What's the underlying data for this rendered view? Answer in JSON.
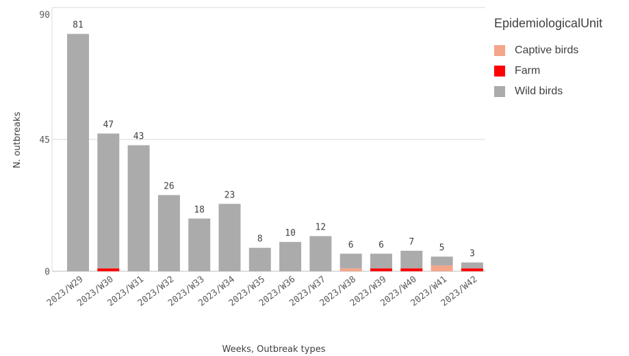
{
  "chart_data": {
    "type": "bar",
    "stacked": true,
    "title": "",
    "xlabel": "Weeks, Outbreak types",
    "ylabel": "N. outbreaks",
    "ylim": [
      0,
      90
    ],
    "yticks": [
      "0",
      "45",
      "90"
    ],
    "grid": true,
    "legend_position": "right",
    "legend_title": "EpidemiologicalUnit",
    "categories": [
      "2023/W29",
      "2023/W30",
      "2023/W31",
      "2023/W32",
      "2023/W33",
      "2023/W34",
      "2023/W35",
      "2023/W36",
      "2023/W37",
      "2023/W38",
      "2023/W39",
      "2023/W40",
      "2023/W41",
      "2023/W42"
    ],
    "totals": [
      "81",
      "47",
      "43",
      "26",
      "18",
      "23",
      "8",
      "10",
      "12",
      "6",
      "6",
      "7",
      "5",
      "3"
    ],
    "series": [
      {
        "name": "Captive birds",
        "color": "#f4a58a",
        "values": [
          0,
          0,
          0,
          0,
          0,
          0,
          0,
          0,
          0,
          1,
          0,
          0,
          2,
          0
        ]
      },
      {
        "name": "Farm",
        "color": "#ff0000",
        "values": [
          0,
          1,
          0,
          0,
          0,
          0,
          0,
          0,
          0,
          0,
          1,
          1,
          0,
          1
        ]
      },
      {
        "name": "Wild birds",
        "color": "#ababab",
        "values": [
          81,
          46,
          43,
          26,
          18,
          23,
          8,
          10,
          12,
          5,
          5,
          6,
          3,
          2
        ]
      }
    ]
  }
}
